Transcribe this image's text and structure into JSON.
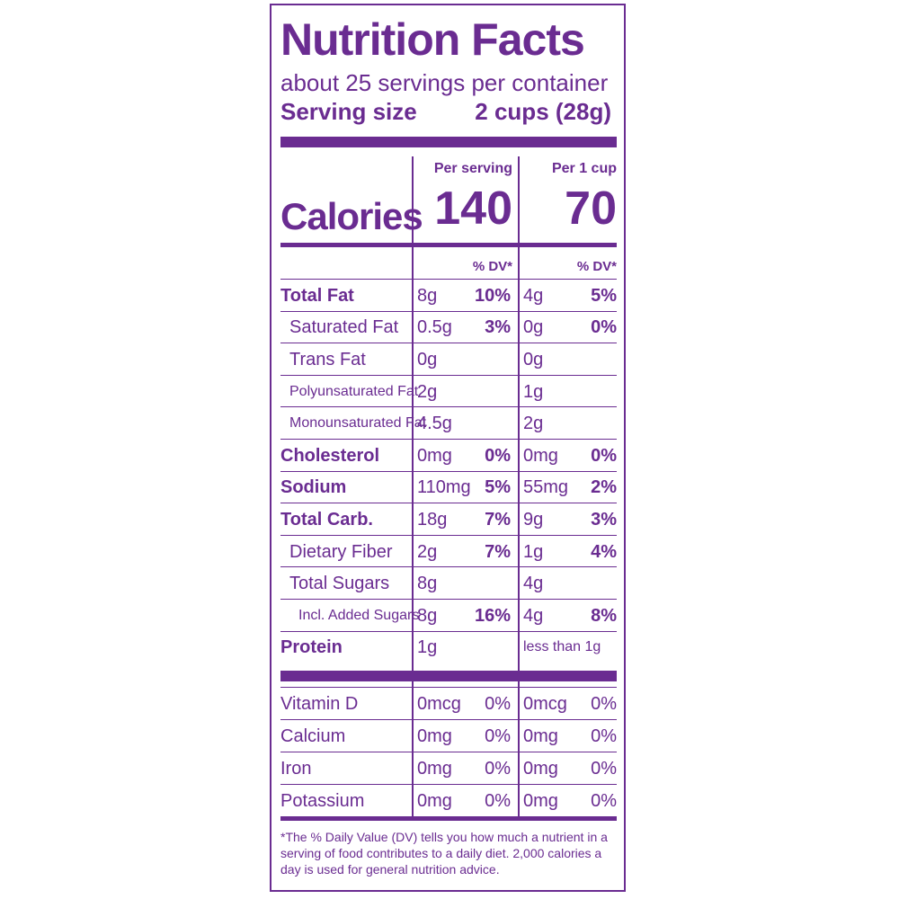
{
  "label": {
    "title": "Nutrition Facts",
    "servings_per_container": "about 25 servings per container",
    "serving_size_label": "Serving size",
    "serving_size_value": "2 cups (28g)",
    "col1_header": "Per serving",
    "col2_header": "Per 1 cup",
    "calories_label": "Calories",
    "calories_per_serving": "140",
    "calories_per_cup": "70",
    "dv_header": "% DV*",
    "rows": [
      {
        "label": "Total Fat",
        "a": "8g",
        "ad": "10%",
        "b": "4g",
        "bd": "5%"
      },
      {
        "label": "Saturated Fat",
        "a": "0.5g",
        "ad": "3%",
        "b": "0g",
        "bd": "0%"
      },
      {
        "label": "Trans Fat",
        "a": "0g",
        "ad": "",
        "b": "0g",
        "bd": ""
      },
      {
        "label": "Polyunsaturated Fat",
        "a": "2g",
        "ad": "",
        "b": "1g",
        "bd": ""
      },
      {
        "label": "Monounsaturated Fat",
        "a": "4.5g",
        "ad": "",
        "b": "2g",
        "bd": ""
      },
      {
        "label": "Cholesterol",
        "a": "0mg",
        "ad": "0%",
        "b": "0mg",
        "bd": "0%"
      },
      {
        "label": "Sodium",
        "a": "110mg",
        "ad": "5%",
        "b": "55mg",
        "bd": "2%"
      },
      {
        "label": "Total Carb.",
        "a": "18g",
        "ad": "7%",
        "b": "9g",
        "bd": "3%"
      },
      {
        "label": "Dietary Fiber",
        "a": "2g",
        "ad": "7%",
        "b": "1g",
        "bd": "4%"
      },
      {
        "label": "Total Sugars",
        "a": "8g",
        "ad": "",
        "b": "4g",
        "bd": ""
      },
      {
        "label": "Incl. Added Sugars",
        "a": "8g",
        "ad": "16%",
        "b": "4g",
        "bd": "8%"
      },
      {
        "label": "Protein",
        "a": "1g",
        "ad": "",
        "b": "less than 1g",
        "bd": ""
      }
    ],
    "vitamins": [
      {
        "label": "Vitamin D",
        "a": "0mcg",
        "ad": "0%",
        "b": "0mcg",
        "bd": "0%"
      },
      {
        "label": "Calcium",
        "a": "0mg",
        "ad": "0%",
        "b": "0mg",
        "bd": "0%"
      },
      {
        "label": "Iron",
        "a": "0mg",
        "ad": "0%",
        "b": "0mg",
        "bd": "0%"
      },
      {
        "label": "Potassium",
        "a": "0mg",
        "ad": "0%",
        "b": "0mg",
        "bd": "0%"
      }
    ],
    "footnote": "*The % Daily Value (DV) tells you how much a nutrient in a serving of food contributes to a daily diet. 2,000 calories a day is used for general nutrition advice.",
    "accent_color": "#6a2c91"
  }
}
